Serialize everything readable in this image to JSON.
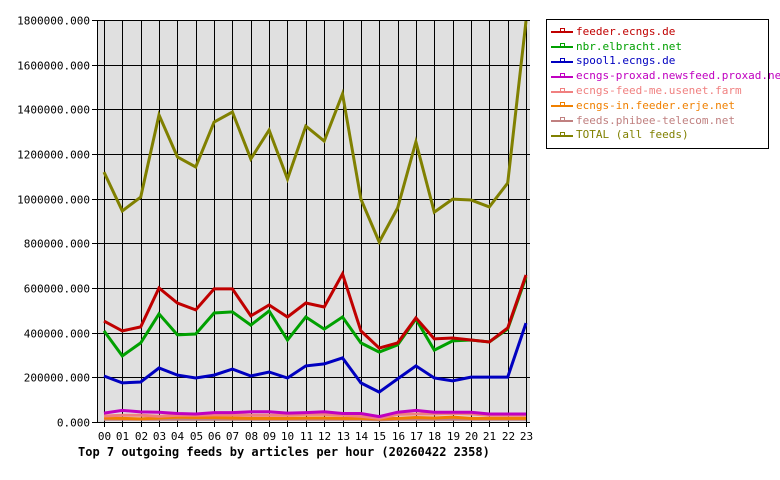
{
  "chart_data": {
    "type": "line",
    "title": "Top 7 outgoing feeds by articles per hour (20260422 2358)",
    "xlabel": "",
    "ylabel": "",
    "ylim": [
      0,
      1800000
    ],
    "grid": true,
    "legend_position": "right",
    "y_ticks": [
      "0.000",
      "200000.000",
      "400000.000",
      "600000.000",
      "800000.000",
      "1000000.000",
      "1200000.000",
      "1400000.000",
      "1600000.000",
      "1800000.000"
    ],
    "categories": [
      "00",
      "01",
      "02",
      "03",
      "04",
      "05",
      "06",
      "07",
      "08",
      "09",
      "10",
      "11",
      "12",
      "13",
      "14",
      "15",
      "16",
      "17",
      "18",
      "19",
      "20",
      "21",
      "22",
      "23"
    ],
    "series": [
      {
        "name": "feeder.ecngs.de",
        "color": "#c00000",
        "values": [
          452000,
          408000,
          426000,
          600000,
          533000,
          502000,
          596000,
          596000,
          475000,
          524000,
          470000,
          533000,
          515000,
          663000,
          408000,
          331000,
          354000,
          466000,
          372000,
          376000,
          367000,
          358000,
          421000,
          658000
        ]
      },
      {
        "name": "nbr.elbracht.net",
        "color": "#00a000",
        "values": [
          408000,
          296000,
          354000,
          484000,
          390000,
          394000,
          488000,
          493000,
          434000,
          497000,
          367000,
          470000,
          416000,
          470000,
          354000,
          313000,
          345000,
          461000,
          322000,
          363000,
          367000,
          358000,
          416000,
          649000
        ]
      },
      {
        "name": "spool1.ecngs.de",
        "color": "#0000c0",
        "values": [
          206000,
          175000,
          179000,
          242000,
          210000,
          197000,
          210000,
          237000,
          206000,
          224000,
          197000,
          251000,
          260000,
          287000,
          175000,
          134000,
          193000,
          251000,
          197000,
          184000,
          201000,
          201000,
          201000,
          443000
        ]
      },
      {
        "name": "ecngs-proxad.newsfeed.proxad.net",
        "color": "#c000c0",
        "values": [
          40000,
          52000,
          45000,
          44000,
          38000,
          36000,
          42000,
          42000,
          46000,
          46000,
          40000,
          42000,
          46000,
          38000,
          38000,
          24000,
          44000,
          52000,
          44000,
          44000,
          44000,
          36000,
          36000,
          36000
        ]
      },
      {
        "name": "ecngs-feed-me.usenet.farm",
        "color": "#f08080",
        "values": [
          27000,
          30000,
          30000,
          26000,
          30000,
          30000,
          32000,
          32000,
          30000,
          30000,
          30000,
          34000,
          34000,
          30000,
          26000,
          16000,
          34000,
          36000,
          36000,
          38000,
          36000,
          30000,
          30000,
          30000
        ]
      },
      {
        "name": "ecngs-in.feeder.erje.net",
        "color": "#f08000",
        "values": [
          18000,
          16000,
          14000,
          18000,
          22000,
          20000,
          20000,
          18000,
          16000,
          16000,
          16000,
          18000,
          18000,
          16000,
          16000,
          14000,
          16000,
          20000,
          18000,
          22000,
          16000,
          16000,
          16000,
          16000
        ]
      },
      {
        "name": "feeds.phibee-telecom.net",
        "color": "#c08080",
        "values": [
          12000,
          12000,
          12000,
          12000,
          12000,
          12000,
          12000,
          12000,
          12000,
          12000,
          12000,
          12000,
          12000,
          12000,
          12000,
          10000,
          12000,
          12000,
          12000,
          12000,
          12000,
          12000,
          12000,
          12000
        ]
      },
      {
        "name": "TOTAL (all feeds)",
        "color": "#808000",
        "values": [
          1119000,
          945000,
          1007000,
          1375000,
          1187000,
          1142000,
          1343000,
          1388000,
          1178000,
          1307000,
          1088000,
          1325000,
          1258000,
          1469000,
          998000,
          806000,
          958000,
          1254000,
          940000,
          998000,
          994000,
          963000,
          1070000,
          1795000
        ]
      }
    ]
  },
  "legend": {
    "items": [
      {
        "label": "feeder.ecngs.de",
        "color": "#c00000"
      },
      {
        "label": "nbr.elbracht.net",
        "color": "#00a000"
      },
      {
        "label": "spool1.ecngs.de",
        "color": "#0000c0"
      },
      {
        "label": "ecngs-proxad.newsfeed.proxad.net",
        "color": "#c000c0"
      },
      {
        "label": "ecngs-feed-me.usenet.farm",
        "color": "#f08080"
      },
      {
        "label": "ecngs-in.feeder.erje.net",
        "color": "#f08000"
      },
      {
        "label": "feeds.phibee-telecom.net",
        "color": "#c08080"
      },
      {
        "label": "TOTAL (all feeds)",
        "color": "#808000"
      }
    ]
  },
  "colors": {
    "plot_background": "#e0e0e0",
    "grid": "#000000"
  }
}
